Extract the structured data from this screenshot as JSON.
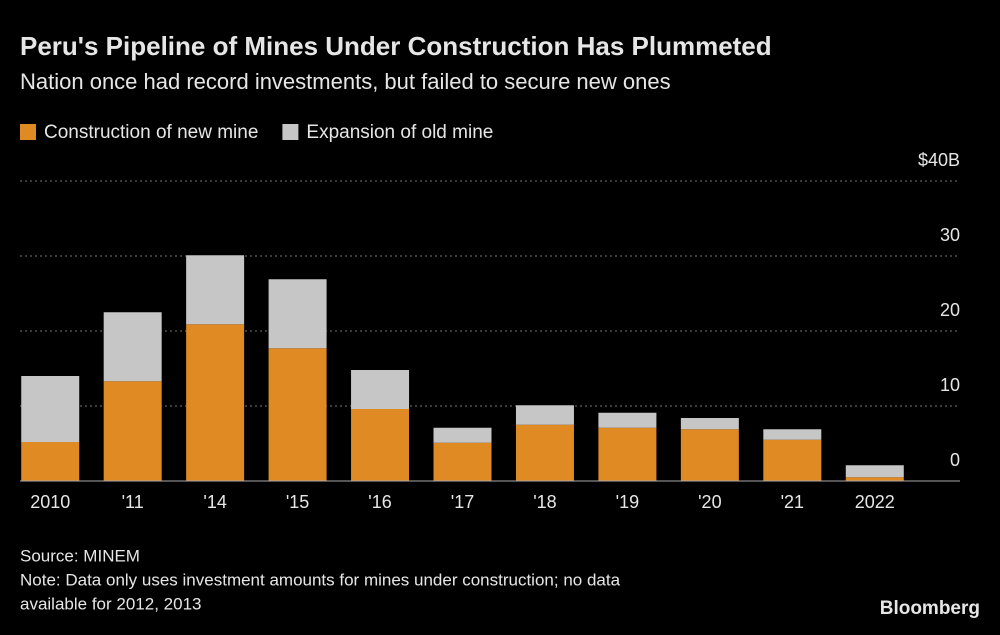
{
  "chart_data": {
    "type": "stacked-bar",
    "title": "Peru's Pipeline of Mines Under Construction Has Plummeted",
    "subtitle": "Nation once had record investments, but failed to secure new ones",
    "categories": [
      "2010",
      "'11",
      "'14",
      "'15",
      "'16",
      "'17",
      "'18",
      "'19",
      "'20",
      "'21",
      "2022"
    ],
    "series": [
      {
        "name": "Construction of new mine",
        "color": "#e08a24",
        "values": [
          5.2,
          13.3,
          20.9,
          17.7,
          9.6,
          5.1,
          7.5,
          7.1,
          6.9,
          5.5,
          0.5
        ]
      },
      {
        "name": "Expansion of old mine",
        "color": "#c6c6c6",
        "values": [
          8.8,
          9.2,
          9.2,
          9.2,
          5.2,
          2.0,
          2.6,
          2.0,
          1.5,
          1.4,
          1.6
        ]
      }
    ],
    "ylim": [
      0,
      40
    ],
    "yticks": [
      0,
      10,
      20,
      30,
      {
        "value": 40,
        "label": "$40B"
      }
    ],
    "grid": true,
    "legend": "top-left",
    "source": "Source: MINEM",
    "note": [
      "Note: Data only uses investment amounts for mines under construction; no data",
      "available for 2012, 2013"
    ],
    "brand": "Bloomberg"
  }
}
